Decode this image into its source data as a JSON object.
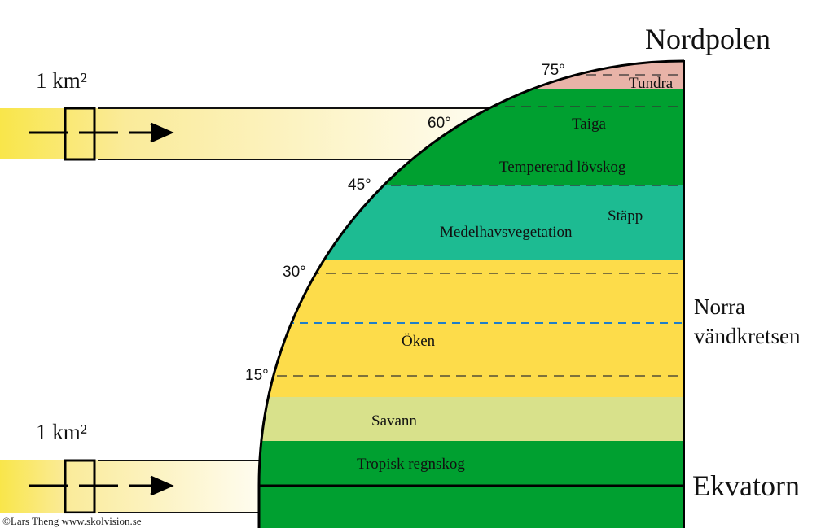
{
  "north_pole": "Nordpolen",
  "tropic": [
    "Norra",
    "vändkretsen"
  ],
  "equator": "Ekvatorn",
  "area_labels": [
    "1 km²",
    "1 km²"
  ],
  "latitudes": [
    "75°",
    "60°",
    "45°",
    "30°",
    "15°"
  ],
  "zones": [
    "Tundra",
    "Taiga",
    "Tempererad lövskog",
    "Stäpp",
    "Medelhavsvegetation",
    "Öken",
    "Savann",
    "Tropisk regnskog"
  ],
  "credit": "©Lars Theng www.skolvision.se"
}
